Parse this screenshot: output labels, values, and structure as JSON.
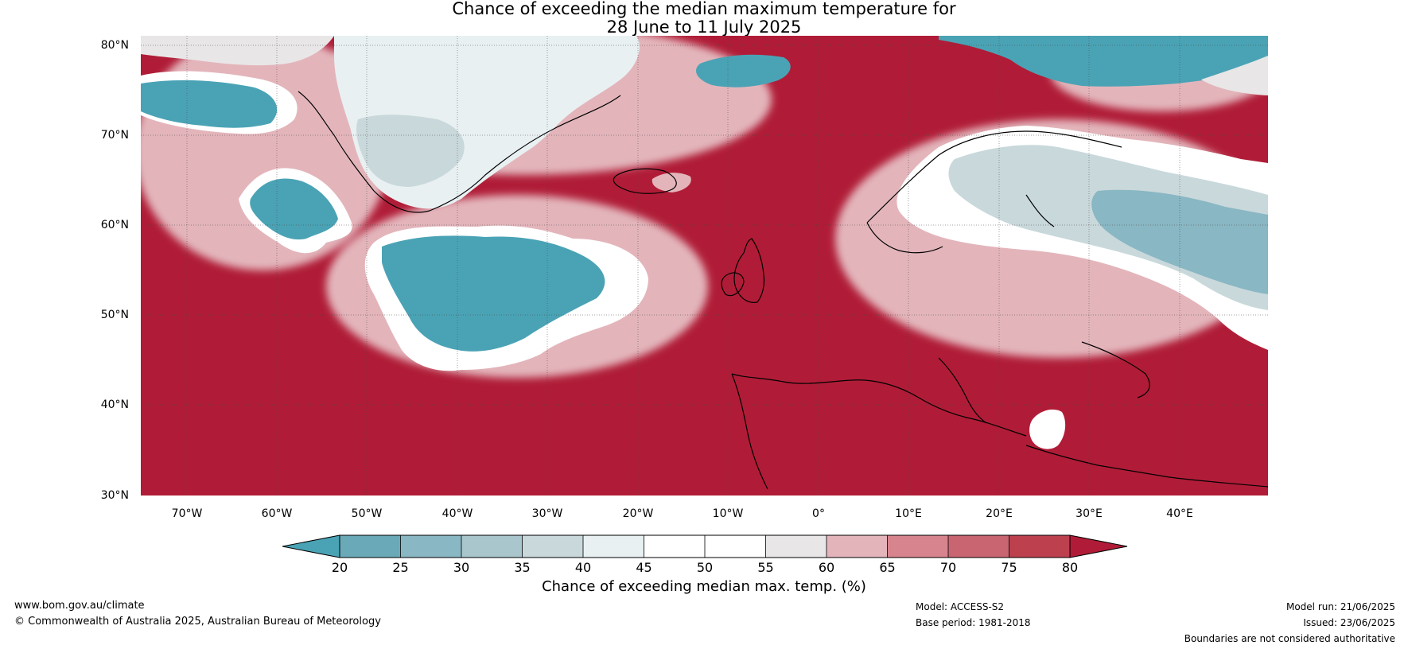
{
  "map": {
    "title_line1": "Chance of exceeding the median maximum temperature for",
    "title_line2": "28 June to 11 July 2025",
    "lat_labels": [
      "80°N",
      "70°N",
      "60°N",
      "50°N",
      "40°N",
      "30°N"
    ],
    "lon_labels": [
      "70°W",
      "60°W",
      "50°W",
      "40°W",
      "30°W",
      "20°W",
      "10°W",
      "0°",
      "10°E",
      "20°E",
      "30°E",
      "40°E"
    ],
    "dominant_color": "#b01c37"
  },
  "colorbar": {
    "title": "Chance of exceeding median max. temp. (%)",
    "ticks": [
      "20",
      "25",
      "30",
      "35",
      "40",
      "45",
      "50",
      "55",
      "60",
      "65",
      "70",
      "75",
      "80"
    ],
    "colors": [
      "#4aa3b5",
      "#6aa9b7",
      "#89b7c3",
      "#a9c6cc",
      "#c9d8db",
      "#e9f0f2",
      "#ffffff",
      "#ffffff",
      "#e9e6e7",
      "#e3b5bb",
      "#d7848e",
      "#c96570",
      "#bd404f",
      "#b01c37"
    ]
  },
  "footer": {
    "website": "www.bom.gov.au/climate",
    "copyright": "© Commonwealth of Australia 2025, Australian Bureau of Meteorology",
    "model": "Model: ACCESS-S2",
    "base_period": "Base period: 1981-2018",
    "model_run": "Model run: 21/06/2025",
    "issued": "Issued: 23/06/2025",
    "disclaimer": "Boundaries are not considered authoritative"
  }
}
